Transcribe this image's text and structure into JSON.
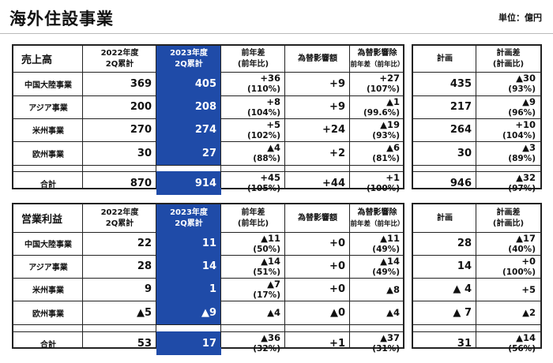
{
  "header": {
    "title": "海外住設事業",
    "unit": "単位：億円"
  },
  "columns": {
    "prev": [
      "2022年度",
      "2Q累計"
    ],
    "curr": [
      "2023年度",
      "2Q累計"
    ],
    "diff": [
      "前年差",
      "(前年比)"
    ],
    "fx": "為替影響額",
    "fx_ex": "為替影響除",
    "fx_ex_sub": "前年差（前年比）",
    "plan": "計画",
    "plan_diff": [
      "計画差",
      "(計画比)"
    ]
  },
  "sections": [
    {
      "label": "売上高",
      "rows": [
        {
          "name": "中国大陸事業",
          "prev": "369",
          "curr": "405",
          "diff": "+36",
          "diff_pct": "(110%)",
          "fx": "+9",
          "fxex": "+27",
          "fxex_pct": "(107%)",
          "plan": "435",
          "pdiff": "▲30",
          "pdiff_pct": "(93%)"
        },
        {
          "name": "アジア事業",
          "prev": "200",
          "curr": "208",
          "diff": "+8",
          "diff_pct": "(104%)",
          "fx": "+9",
          "fxex": "▲1",
          "fxex_pct": "(99.6%)",
          "plan": "217",
          "pdiff": "▲9",
          "pdiff_pct": "(96%)"
        },
        {
          "name": "米州事業",
          "prev": "270",
          "curr": "274",
          "diff": "+5",
          "diff_pct": "(102%)",
          "fx": "+24",
          "fxex": "▲19",
          "fxex_pct": "(93%)",
          "plan": "264",
          "pdiff": "+10",
          "pdiff_pct": "(104%)"
        },
        {
          "name": "欧州事業",
          "prev": "30",
          "curr": "27",
          "diff": "▲4",
          "diff_pct": "(88%)",
          "fx": "+2",
          "fxex": "▲6",
          "fxex_pct": "(81%)",
          "plan": "30",
          "pdiff": "▲3",
          "pdiff_pct": "(89%)"
        }
      ],
      "total": {
        "name": "合計",
        "prev": "870",
        "curr": "914",
        "diff": "+45",
        "diff_pct": "(105%)",
        "fx": "+44",
        "fxex": "+1",
        "fxex_pct": "(100%)",
        "plan": "946",
        "pdiff": "▲32",
        "pdiff_pct": "(97%)"
      }
    },
    {
      "label": "営業利益",
      "rows": [
        {
          "name": "中国大陸事業",
          "prev": "22",
          "curr": "11",
          "diff": "▲11",
          "diff_pct": "(50%)",
          "fx": "+0",
          "fxex": "▲11",
          "fxex_pct": "(49%)",
          "plan": "28",
          "pdiff": "▲17",
          "pdiff_pct": "(40%)"
        },
        {
          "name": "アジア事業",
          "prev": "28",
          "curr": "14",
          "diff": "▲14",
          "diff_pct": "(51%)",
          "fx": "+0",
          "fxex": "▲14",
          "fxex_pct": "(49%)",
          "plan": "14",
          "pdiff": "+0",
          "pdiff_pct": "(100%)"
        },
        {
          "name": "米州事業",
          "prev": "9",
          "curr": "1",
          "diff": "▲7",
          "diff_pct": "(17%)",
          "fx": "+0",
          "fxex": "▲8",
          "fxex_pct": "",
          "plan": "▲ 4",
          "pdiff": "+5",
          "pdiff_pct": ""
        },
        {
          "name": "欧州事業",
          "prev": "▲5",
          "curr": "▲9",
          "diff": "▲4",
          "diff_pct": "",
          "fx": "▲0",
          "fxex": "▲4",
          "fxex_pct": "",
          "plan": "▲ 7",
          "pdiff": "▲2",
          "pdiff_pct": ""
        }
      ],
      "total": {
        "name": "合計",
        "prev": "53",
        "curr": "17",
        "diff": "▲36",
        "diff_pct": "(32%)",
        "fx": "+1",
        "fxex": "▲37",
        "fxex_pct": "(31%)",
        "plan": "31",
        "pdiff": "▲14",
        "pdiff_pct": "(56%)"
      }
    }
  ]
}
